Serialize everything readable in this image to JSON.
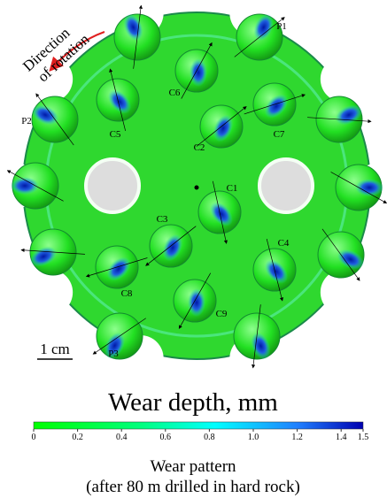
{
  "figure": {
    "rotation_label": [
      "Direction",
      "of rotation"
    ],
    "labels": [
      "P1",
      "P2",
      "P3",
      "C1",
      "C2",
      "C3",
      "C4",
      "C5",
      "C6",
      "C7",
      "C8",
      "C9"
    ],
    "scale_bar": "1 cm",
    "colorbar": {
      "title": "Wear depth, mm",
      "range": [
        0,
        1.5
      ],
      "ticks": [
        0,
        0.2,
        0.4,
        0.6,
        0.8,
        {
          "value": 1,
          "label": "1.0"
        },
        1.2,
        1.4,
        1.5
      ]
    },
    "caption": [
      "Wear pattern",
      "(after 80 m drilled in hard rock)"
    ]
  }
}
